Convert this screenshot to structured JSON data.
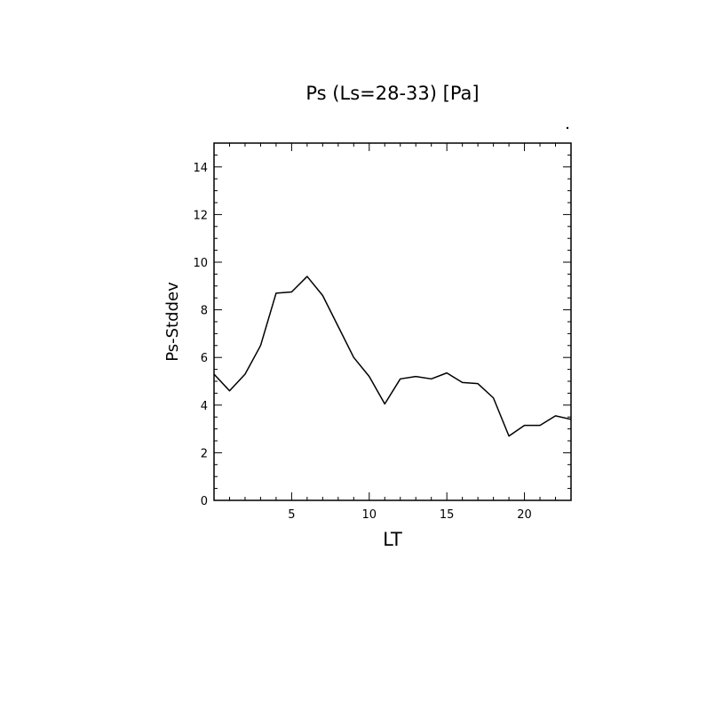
{
  "chart_data": {
    "type": "line",
    "title": "Ps (Ls=28-33) [Pa]",
    "xlabel": "LT",
    "ylabel": "Ps-Stddev",
    "xlim": [
      0.0,
      23.0
    ],
    "ylim": [
      0,
      15
    ],
    "x_ticks": [
      5,
      10,
      15,
      20
    ],
    "y_ticks": [
      0,
      2,
      4,
      6,
      8,
      10,
      12,
      14
    ],
    "grid": false,
    "legend": "none",
    "line_color": "#000000",
    "series": [
      {
        "x": [
          0.0,
          1.0,
          2.0,
          3.0,
          4.0,
          5.0,
          6.0,
          7.0,
          8.0,
          9.0,
          10.0,
          11.0,
          12.0,
          13.0,
          14.0,
          15.0,
          16.0,
          17.0,
          18.0,
          19.0,
          20.0,
          21.0,
          22.0,
          23.0
        ],
        "values": [
          5.3,
          4.6,
          5.3,
          6.5,
          8.7,
          8.75,
          9.4,
          8.6,
          7.3,
          6.0,
          5.2,
          4.05,
          5.1,
          5.2,
          5.1,
          5.35,
          4.95,
          4.9,
          4.3,
          2.7,
          3.15,
          3.15,
          3.55,
          3.4
        ]
      }
    ]
  }
}
